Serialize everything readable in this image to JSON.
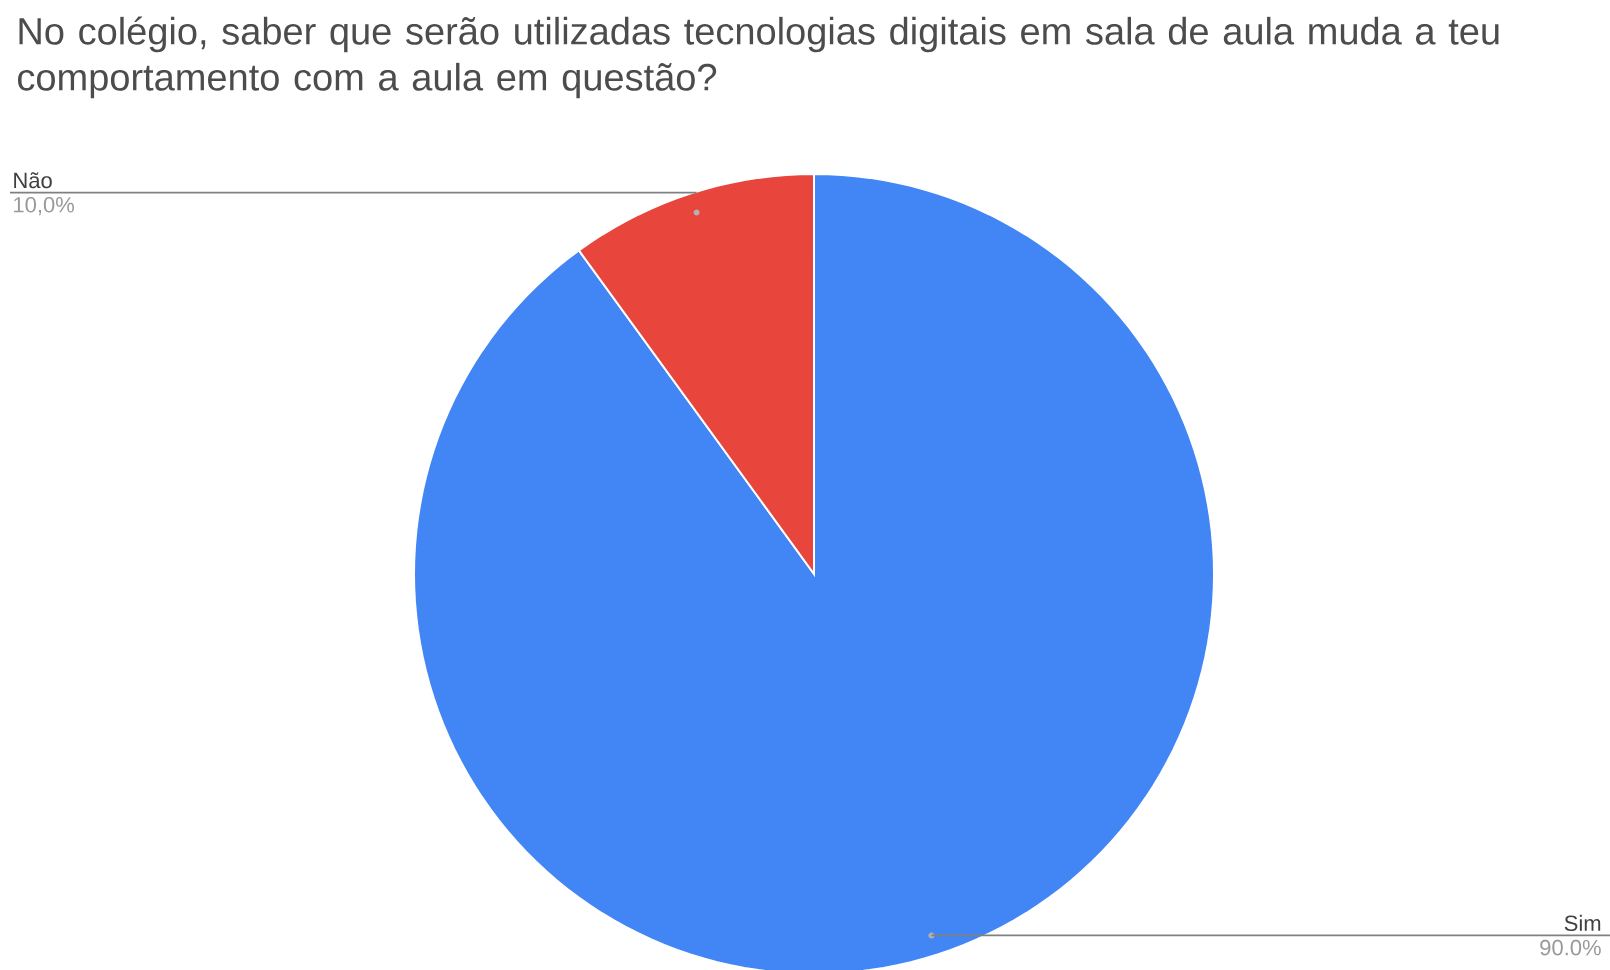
{
  "chart_data": {
    "type": "pie",
    "title": "No colégio, saber que serão utilizadas tecnologias digitais em sala de aula muda a teu comportamento com a aula em questão?",
    "categories": [
      "Sim",
      "Não"
    ],
    "values": [
      90,
      10
    ],
    "value_labels": [
      "90.0%",
      "10,0%"
    ],
    "colors": [
      "#4285f4",
      "#e8453c"
    ]
  }
}
